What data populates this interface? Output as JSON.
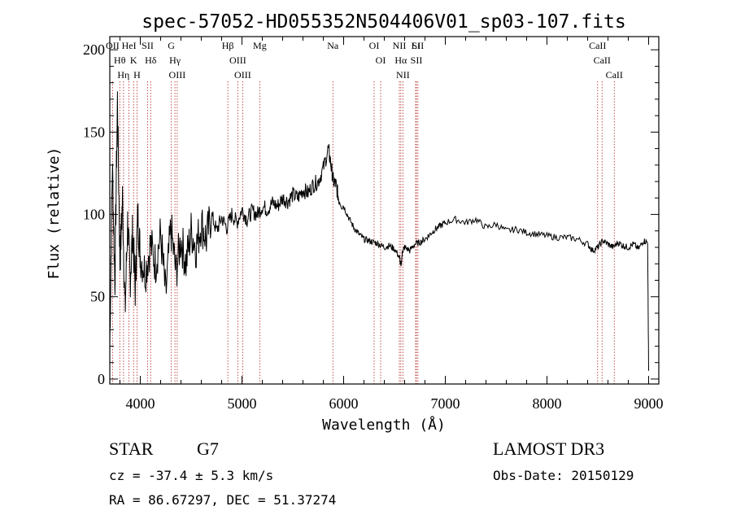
{
  "chart_data": {
    "type": "line",
    "title": "spec-57052-HD055352N504406V01_sp03-107.fits",
    "xlabel": "Wavelength (Å)",
    "ylabel": "Flux (relative)",
    "xlim": [
      3700,
      9100
    ],
    "ylim": [
      -3,
      208
    ],
    "xticks": [
      4000,
      5000,
      6000,
      7000,
      8000,
      9000
    ],
    "yticks": [
      0,
      50,
      100,
      150,
      200
    ],
    "series": [
      {
        "name": "spectrum",
        "x": [
          3700,
          3725,
          3750,
          3775,
          3800,
          3825,
          3850,
          3875,
          3900,
          3925,
          3950,
          3975,
          4000,
          4050,
          4100,
          4150,
          4200,
          4250,
          4300,
          4350,
          4400,
          4450,
          4500,
          4550,
          4600,
          4650,
          4700,
          4750,
          4800,
          4850,
          4900,
          4950,
          5000,
          5050,
          5100,
          5150,
          5200,
          5250,
          5300,
          5350,
          5400,
          5450,
          5500,
          5550,
          5600,
          5650,
          5700,
          5750,
          5800,
          5850,
          5875,
          5900,
          5925,
          5950,
          6000,
          6050,
          6100,
          6150,
          6200,
          6250,
          6300,
          6350,
          6400,
          6450,
          6500,
          6550,
          6563,
          6580,
          6600,
          6650,
          6700,
          6750,
          6800,
          6850,
          6900,
          6950,
          7000,
          7100,
          7200,
          7300,
          7400,
          7500,
          7600,
          7700,
          7800,
          7900,
          8000,
          8100,
          8200,
          8300,
          8400,
          8450,
          8500,
          8550,
          8600,
          8650,
          8700,
          8750,
          8800,
          8850,
          8900,
          8950,
          8990,
          9000
        ],
        "values": [
          20,
          130,
          60,
          170,
          70,
          110,
          40,
          95,
          60,
          90,
          55,
          100,
          75,
          65,
          82,
          70,
          88,
          50,
          92,
          65,
          85,
          70,
          90,
          80,
          95,
          85,
          100,
          90,
          98,
          92,
          100,
          95,
          103,
          97,
          102,
          100,
          105,
          103,
          107,
          105,
          110,
          108,
          112,
          110,
          115,
          113,
          118,
          120,
          128,
          140,
          130,
          120,
          118,
          110,
          105,
          98,
          92,
          88,
          85,
          84,
          83,
          82,
          80,
          81,
          79,
          74,
          68,
          78,
          80,
          78,
          82,
          83,
          85,
          88,
          91,
          93,
          95,
          97,
          95,
          97,
          92,
          94,
          90,
          91,
          89,
          88,
          87,
          86,
          86,
          85,
          82,
          78,
          80,
          84,
          82,
          80,
          83,
          81,
          80,
          82,
          79,
          84,
          83,
          5
        ]
      }
    ],
    "line_markers": [
      {
        "label": "OII",
        "wave": 3727
      },
      {
        "label": "Hθ",
        "wave": 3798
      },
      {
        "label": "Hη",
        "wave": 3835
      },
      {
        "label": "HeI",
        "wave": 3889
      },
      {
        "label": "K",
        "wave": 3934
      },
      {
        "label": "H",
        "wave": 3968
      },
      {
        "label": "SII",
        "wave": 4072
      },
      {
        "label": "Hδ",
        "wave": 4102
      },
      {
        "label": "G",
        "wave": 4305
      },
      {
        "label": "Hγ",
        "wave": 4341
      },
      {
        "label": "OIII",
        "wave": 4363
      },
      {
        "label": "Hβ",
        "wave": 4861
      },
      {
        "label": "OIII",
        "wave": 4959
      },
      {
        "label": "OIII",
        "wave": 5007
      },
      {
        "label": "Mg",
        "wave": 5175
      },
      {
        "label": "Na",
        "wave": 5894
      },
      {
        "label": "OI",
        "wave": 6300
      },
      {
        "label": "OI",
        "wave": 6364
      },
      {
        "label": "NII",
        "wave": 6548
      },
      {
        "label": "Hα",
        "wave": 6563
      },
      {
        "label": "NII",
        "wave": 6583
      },
      {
        "label": "Li",
        "wave": 6708
      },
      {
        "label": "SII",
        "wave": 6716
      },
      {
        "label": "SII",
        "wave": 6731
      },
      {
        "label": "CaII",
        "wave": 8498
      },
      {
        "label": "CaII",
        "wave": 8542
      },
      {
        "label": "CaII",
        "wave": 8662
      }
    ]
  },
  "info": {
    "object_class": "STAR",
    "subclass": "G7",
    "survey": "LAMOST DR3",
    "redshift_line": "cz = -37.4 ± 5.3 km/s",
    "obs_date_line": "Obs-Date: 20150129",
    "coords_line": "RA =  86.67297, DEC =  51.37274"
  },
  "colors": {
    "spectrum": "#000000",
    "marker": "#b22222",
    "axis": "#000000"
  }
}
